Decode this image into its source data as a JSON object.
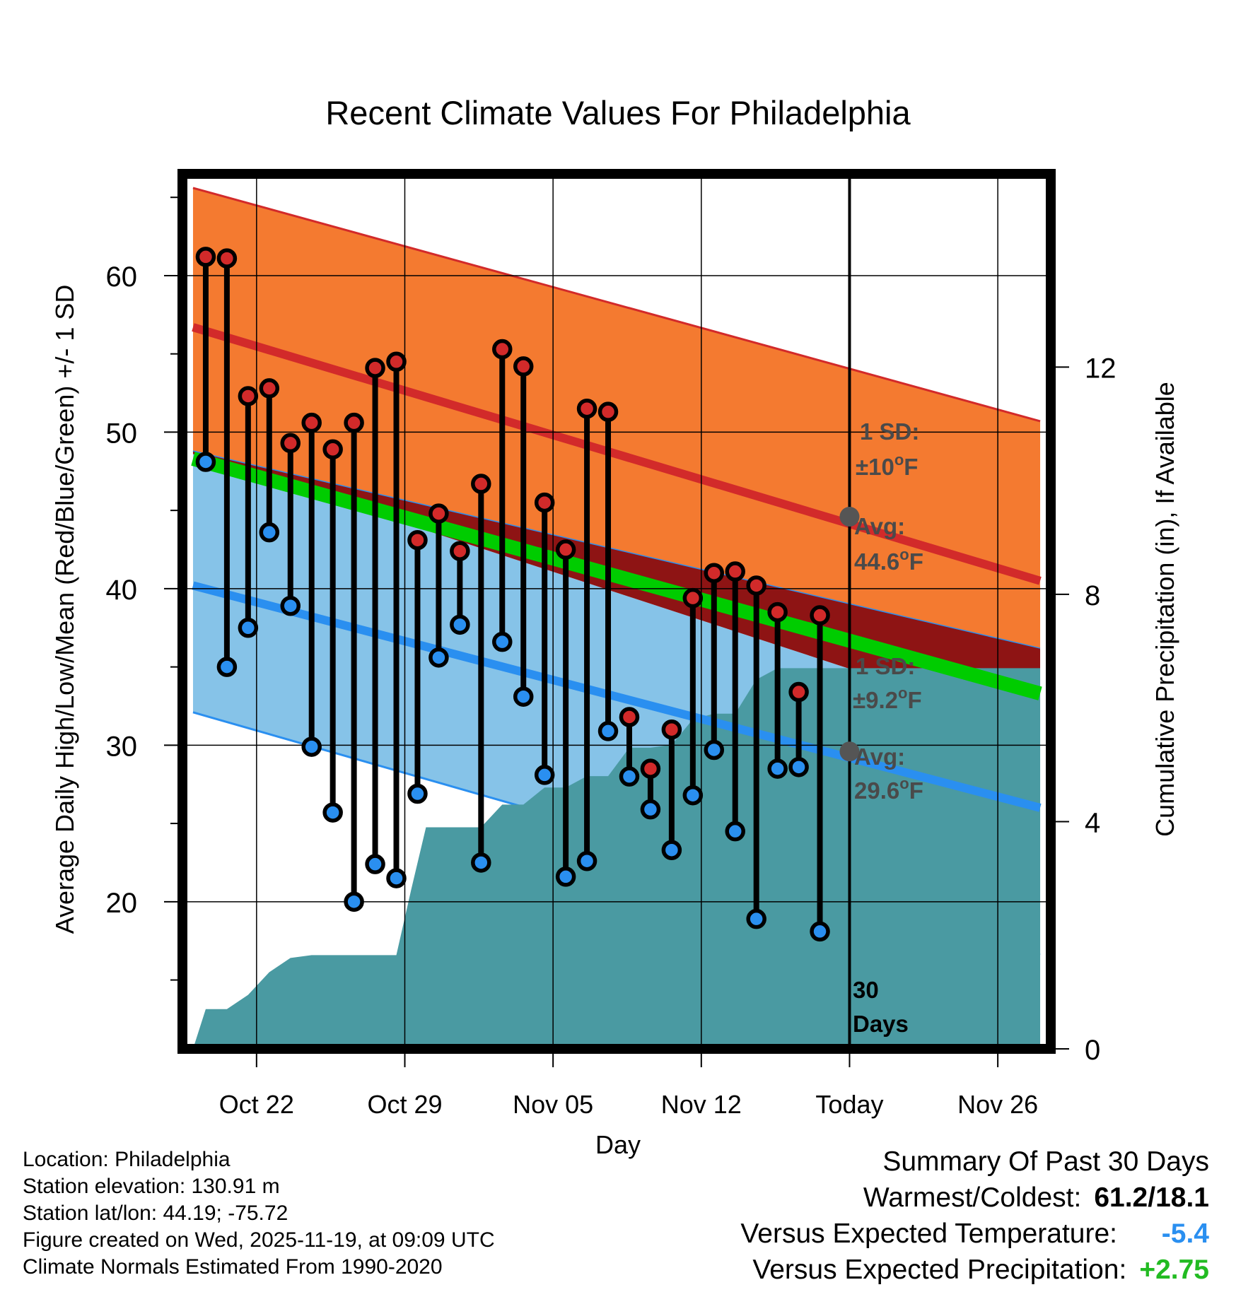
{
  "chart_data": {
    "type": "line",
    "title": "Recent Climate Values For Philadelphia",
    "xlabel": "Day",
    "ylabel": "Average Daily High/Low/Mean (Red/Blue/Green) +/- 1 SD",
    "y2label": "Cumulative Precipitation (in), If Available",
    "xlim": [
      -0.5,
      40.5
    ],
    "ylim": [
      10.6,
      66.5
    ],
    "y2lim": [
      0,
      15.4
    ],
    "x_tick_labels": [
      {
        "x": 3,
        "label": "Oct 22"
      },
      {
        "x": 10,
        "label": "Oct 29"
      },
      {
        "x": 17,
        "label": "Nov 05"
      },
      {
        "x": 24,
        "label": "Nov 12"
      },
      {
        "x": 31,
        "label": "Today"
      },
      {
        "x": 38,
        "label": "Nov 26"
      }
    ],
    "y_ticks": [
      20,
      30,
      40,
      50,
      60
    ],
    "y2_ticks": [
      0,
      4,
      8,
      12
    ],
    "normals": {
      "x_range": [
        0,
        40
      ],
      "high_avg": [
        56.7,
        40.5
      ],
      "high_plus_sd": [
        65.6,
        50.7
      ],
      "low_avg": [
        40.2,
        26.0
      ],
      "low_minus_sd": [
        32.1,
        16.6
      ],
      "mean_avg": [
        48.3,
        33.3
      ],
      "mean_band_upper": [
        48.8,
        36.2
      ],
      "mean_band_lower": [
        48.6,
        30.9
      ]
    },
    "daily": [
      {
        "x": 0.6,
        "high": 61.2,
        "low": 48.1
      },
      {
        "x": 1.6,
        "high": 61.1,
        "low": 35.0
      },
      {
        "x": 2.6,
        "high": 52.3,
        "low": 37.5
      },
      {
        "x": 3.6,
        "high": 52.8,
        "low": 43.6
      },
      {
        "x": 4.6,
        "high": 49.3,
        "low": 38.9
      },
      {
        "x": 5.6,
        "high": 50.6,
        "low": 29.9
      },
      {
        "x": 6.6,
        "high": 48.9,
        "low": 25.7
      },
      {
        "x": 7.6,
        "high": 50.6,
        "low": 20.0
      },
      {
        "x": 8.6,
        "high": 54.1,
        "low": 22.4
      },
      {
        "x": 9.6,
        "high": 54.5,
        "low": 21.5
      },
      {
        "x": 10.6,
        "high": 43.1,
        "low": 26.9
      },
      {
        "x": 11.6,
        "high": 44.8,
        "low": 35.6
      },
      {
        "x": 12.6,
        "high": 42.4,
        "low": 37.7
      },
      {
        "x": 13.6,
        "high": 46.7,
        "low": 22.5
      },
      {
        "x": 14.6,
        "high": 55.3,
        "low": 36.6
      },
      {
        "x": 15.6,
        "high": 54.2,
        "low": 33.1
      },
      {
        "x": 16.6,
        "high": 45.5,
        "low": 28.1
      },
      {
        "x": 17.6,
        "high": 42.5,
        "low": 21.6
      },
      {
        "x": 18.6,
        "high": 51.5,
        "low": 22.6
      },
      {
        "x": 19.6,
        "high": 51.3,
        "low": 30.9
      },
      {
        "x": 20.6,
        "high": 31.8,
        "low": 28.0
      },
      {
        "x": 21.6,
        "high": 28.5,
        "low": 25.9
      },
      {
        "x": 22.6,
        "high": 31.0,
        "low": 23.3
      },
      {
        "x": 23.6,
        "high": 39.4,
        "low": 26.8
      },
      {
        "x": 24.6,
        "high": 41.0,
        "low": 29.7
      },
      {
        "x": 25.6,
        "high": 41.1,
        "low": 24.5
      },
      {
        "x": 26.6,
        "high": 40.2,
        "low": 18.9
      },
      {
        "x": 27.6,
        "high": 38.5,
        "low": 28.5
      },
      {
        "x": 28.6,
        "high": 33.4,
        "low": 28.6
      },
      {
        "x": 29.6,
        "high": 38.3,
        "low": 18.1
      }
    ],
    "precip_cumulative": [
      [
        0,
        0.0
      ],
      [
        0.6,
        0.7
      ],
      [
        1.6,
        0.7
      ],
      [
        2.6,
        0.95
      ],
      [
        3.6,
        1.35
      ],
      [
        4.6,
        1.6
      ],
      [
        5.6,
        1.65
      ],
      [
        6.6,
        1.65
      ],
      [
        7.6,
        1.65
      ],
      [
        8.6,
        1.65
      ],
      [
        9.6,
        1.65
      ],
      [
        10.3,
        2.8
      ],
      [
        11.0,
        3.9
      ],
      [
        11.6,
        3.9
      ],
      [
        12.6,
        3.9
      ],
      [
        13.6,
        3.9
      ],
      [
        14.6,
        4.3
      ],
      [
        15.6,
        4.3
      ],
      [
        16.6,
        4.6
      ],
      [
        17.6,
        4.6
      ],
      [
        18.6,
        4.8
      ],
      [
        19.6,
        4.8
      ],
      [
        20.6,
        5.3
      ],
      [
        21.6,
        5.3
      ],
      [
        22.6,
        5.35
      ],
      [
        23.6,
        5.8
      ],
      [
        24.6,
        5.9
      ],
      [
        25.6,
        5.9
      ],
      [
        26.6,
        6.5
      ],
      [
        27.6,
        6.7
      ],
      [
        28.6,
        6.7
      ],
      [
        29.6,
        6.7
      ],
      [
        31,
        6.7
      ],
      [
        40,
        6.7
      ]
    ],
    "today_marker": {
      "x": 31,
      "high_avg": 44.6,
      "low_avg": 29.6
    },
    "annotations": {
      "high_sd": "1 SD:",
      "high_sd_value": "±10",
      "high_avg": "Avg:",
      "high_avg_value": "44.6",
      "low_sd": "1 SD:",
      "low_sd_value": "±9.2",
      "low_avg": "Avg:",
      "low_avg_value": "29.6",
      "unit": "F",
      "degree": "o",
      "days_count": "30",
      "days_label": "Days"
    },
    "colors": {
      "high_band": "#f47a30",
      "high_line": "#d22a2a",
      "low_band": "#86c3e8",
      "low_line": "#2a8ff0",
      "mean_band": "#8e1414",
      "mean_line": "#00cc00",
      "precip": "#4a9aa2",
      "high_dot": "#d22a2a",
      "low_dot": "#2a8ff0",
      "marker": "#555555",
      "annotation": "#4a4a4a"
    }
  },
  "meta": {
    "location": "Location: Philadelphia",
    "elevation": "Station elevation: 130.91 m",
    "latlon": "Station lat/lon: 44.19; -75.72",
    "created": "Figure created on Wed, 2025-11-19, at 09:09 UTC",
    "normals": "Climate Normals Estimated From 1990-2020"
  },
  "summary": {
    "title": "Summary Of Past 30 Days",
    "warm_cold_label": "Warmest/Coldest:",
    "warm_cold_value": "61.2/18.1",
    "temp_label": "Versus Expected Temperature:",
    "temp_value": "-5.4",
    "temp_color": "#2a8ff0",
    "precip_label": "Versus Expected Precipitation:",
    "precip_value": "+2.75",
    "precip_color": "#22bb22"
  }
}
